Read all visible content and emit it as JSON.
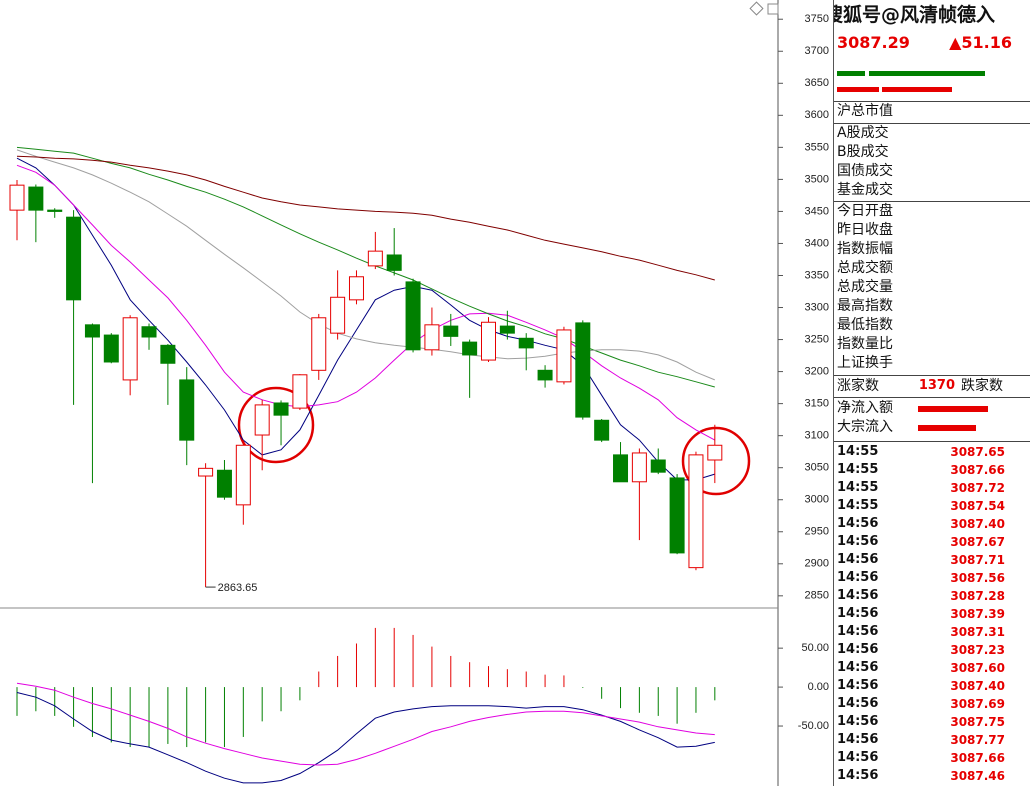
{
  "chart_data": [
    {
      "type": "candlestick",
      "ylim": [
        2831,
        3780
      ],
      "yticks": [
        3750,
        3700,
        3650,
        3600,
        3550,
        3500,
        3450,
        3400,
        3350,
        3300,
        3250,
        3200,
        3150,
        3100,
        3050,
        3000,
        2950,
        2900,
        2850
      ],
      "up_color": "#e60000",
      "down_color": "#008000",
      "open": [
        3452,
        3488,
        3452,
        3441,
        3273,
        3257,
        3187,
        3270,
        3241,
        3187,
        3037,
        3046,
        2992,
        3101,
        3151,
        3143,
        3202,
        3260,
        3312,
        3365,
        3382,
        3340,
        3234,
        3271,
        3246,
        3218,
        3271,
        3252,
        3202,
        3184,
        3276,
        3124,
        3070,
        3028,
        3062,
        3034,
        2894,
        3062
      ],
      "high": [
        3499,
        3492,
        3455,
        3452,
        3275,
        3260,
        3288,
        3275,
        3243,
        3207,
        3057,
        3062,
        3093,
        3156,
        3155,
        3196,
        3290,
        3358,
        3358,
        3418,
        3424,
        3345,
        3300,
        3290,
        3250,
        3285,
        3295,
        3260,
        3210,
        3270,
        3280,
        3126,
        3090,
        3080,
        3080,
        3040,
        3075,
        3117
      ],
      "low": [
        3405,
        3402,
        3440,
        3148,
        3026,
        3213,
        3163,
        3234,
        3148,
        3054,
        2863.65,
        3000,
        2961,
        3046,
        3085,
        3140,
        3187,
        3250,
        3305,
        3360,
        3350,
        3230,
        3225,
        3240,
        3159,
        3215,
        3250,
        3202,
        3175,
        3180,
        3125,
        3090,
        3028,
        2937,
        3040,
        2915,
        2890,
        3026
      ],
      "close": [
        3491,
        3452,
        3450,
        3312,
        3254,
        3215,
        3284,
        3254,
        3213,
        3093,
        3049,
        3004,
        3085,
        3148,
        3132,
        3195,
        3284,
        3316,
        3348,
        3388,
        3358,
        3234,
        3273,
        3255,
        3226,
        3277,
        3260,
        3237,
        3187,
        3265,
        3129,
        3093,
        3028,
        3073,
        3043,
        2917,
        3070,
        3085
      ],
      "series": [
        {
          "color": "#000080",
          "values": [
            3533,
            3518,
            3491,
            3460,
            3413,
            3366,
            3312,
            3280,
            3249,
            3215,
            3179,
            3140,
            3093,
            3070,
            3078,
            3109,
            3163,
            3218,
            3265,
            3312,
            3327,
            3333,
            3327,
            3304,
            3280,
            3265,
            3255,
            3249,
            3241,
            3234,
            3210,
            3163,
            3117,
            3093,
            3059,
            3031,
            3031,
            3040
          ]
        },
        {
          "color": "#e000e0",
          "values": [
            3522,
            3511,
            3491,
            3460,
            3429,
            3397,
            3371,
            3343,
            3315,
            3280,
            3241,
            3199,
            3168,
            3156,
            3148,
            3145,
            3148,
            3153,
            3168,
            3190,
            3218,
            3245,
            3265,
            3280,
            3290,
            3291,
            3288,
            3277,
            3265,
            3252,
            3231,
            3209,
            3190,
            3174,
            3156,
            3128,
            3109,
            3093
          ]
        },
        {
          "color": "#1a8a1a",
          "values": [
            3550,
            3547,
            3544,
            3541,
            3533,
            3525,
            3518,
            3508,
            3499,
            3489,
            3480,
            3469,
            3457,
            3443,
            3429,
            3415,
            3402,
            3390,
            3377,
            3365,
            3354,
            3343,
            3329,
            3315,
            3302,
            3290,
            3279,
            3270,
            3259,
            3251,
            3240,
            3229,
            3218,
            3209,
            3199,
            3192,
            3184,
            3176
          ]
        },
        {
          "color": "#a0a0a0",
          "values": [
            3546,
            3536,
            3527,
            3518,
            3507,
            3494,
            3480,
            3465,
            3446,
            3427,
            3405,
            3383,
            3362,
            3340,
            3318,
            3293,
            3274,
            3260,
            3251,
            3245,
            3241,
            3238,
            3235,
            3231,
            3226,
            3223,
            3220,
            3221,
            3224,
            3229,
            3232,
            3234,
            3234,
            3232,
            3226,
            3215,
            3199,
            3187
          ]
        },
        {
          "color": "#800000",
          "values": [
            3536,
            3535,
            3533,
            3532,
            3530,
            3527,
            3522,
            3518,
            3513,
            3507,
            3499,
            3489,
            3480,
            3471,
            3465,
            3460,
            3457,
            3454,
            3452,
            3450,
            3449,
            3447,
            3444,
            3438,
            3433,
            3427,
            3421,
            3413,
            3405,
            3399,
            3393,
            3387,
            3380,
            3374,
            3366,
            3358,
            3351,
            3343
          ]
        }
      ]
    },
    {
      "type": "macd",
      "ylim": [
        -127,
        99
      ],
      "yticks": [
        {
          "value": 50,
          "label": "50.00"
        },
        {
          "value": 0,
          "label": "0.00"
        },
        {
          "value": -50,
          "label": "-50.00"
        }
      ],
      "up_color": "#e60000",
      "down_color": "#008000",
      "values": [
        -37,
        -31,
        -37,
        -51,
        -64,
        -71,
        -77,
        -77,
        -73,
        -77,
        -71,
        -77,
        -64,
        -44,
        -31,
        -17,
        20,
        40,
        56,
        76,
        76,
        67,
        52,
        40,
        32,
        27,
        23,
        20,
        16,
        15,
        -1,
        -15,
        -27,
        -33,
        -37,
        -47,
        -33,
        -17
      ],
      "series": [
        {
          "color": "#000080",
          "values": [
            -7,
            -13,
            -24,
            -41,
            -57,
            -68,
            -73,
            -77,
            -87,
            -97,
            -108,
            -117,
            -123,
            -123,
            -120,
            -111,
            -97,
            -81,
            -60,
            -40,
            -32,
            -28,
            -25,
            -24,
            -24,
            -24,
            -25,
            -27,
            -25,
            -25,
            -29,
            -36,
            -44,
            -55,
            -65,
            -77,
            -76,
            -71
          ]
        },
        {
          "color": "#e000e0",
          "values": [
            5,
            1,
            -4,
            -13,
            -21,
            -28,
            -36,
            -44,
            -53,
            -64,
            -72,
            -79,
            -85,
            -91,
            -95,
            -99,
            -100,
            -99,
            -93,
            -85,
            -76,
            -67,
            -57,
            -51,
            -44,
            -39,
            -35,
            -32,
            -31,
            -31,
            -33,
            -37,
            -41,
            -45,
            -51,
            -55,
            -59,
            -61
          ]
        }
      ]
    }
  ],
  "panel": {
    "watermark": "搜狐号@风清帧德入",
    "price": "3087.29",
    "change": "▲51.16",
    "sections": [
      [
        "沪总市值"
      ],
      [
        "A股成交",
        "B股成交",
        "国债成交",
        "基金成交"
      ],
      [
        "今日开盘",
        "昨日收盘",
        "指数振幅",
        "总成交额",
        "总成交量",
        "最高指数",
        "最低指数",
        "指数量比",
        "上证换手"
      ]
    ],
    "advancers": {
      "label": "涨家数",
      "value": "1370",
      "decliners_label": "跌家数"
    },
    "flows": [
      "净流入额",
      "大宗流入"
    ],
    "ticks": [
      [
        "14:55",
        "3087.65"
      ],
      [
        "14:55",
        "3087.66"
      ],
      [
        "14:55",
        "3087.72"
      ],
      [
        "14:55",
        "3087.54"
      ],
      [
        "14:56",
        "3087.40"
      ],
      [
        "14:56",
        "3087.67"
      ],
      [
        "14:56",
        "3087.71"
      ],
      [
        "14:56",
        "3087.56"
      ],
      [
        "14:56",
        "3087.28"
      ],
      [
        "14:56",
        "3087.39"
      ],
      [
        "14:56",
        "3087.31"
      ],
      [
        "14:56",
        "3087.23"
      ],
      [
        "14:56",
        "3087.60"
      ],
      [
        "14:56",
        "3087.40"
      ],
      [
        "14:56",
        "3087.69"
      ],
      [
        "14:56",
        "3087.75"
      ],
      [
        "14:56",
        "3087.77"
      ],
      [
        "14:56",
        "3087.66"
      ],
      [
        "14:56",
        "3087.46"
      ]
    ]
  }
}
